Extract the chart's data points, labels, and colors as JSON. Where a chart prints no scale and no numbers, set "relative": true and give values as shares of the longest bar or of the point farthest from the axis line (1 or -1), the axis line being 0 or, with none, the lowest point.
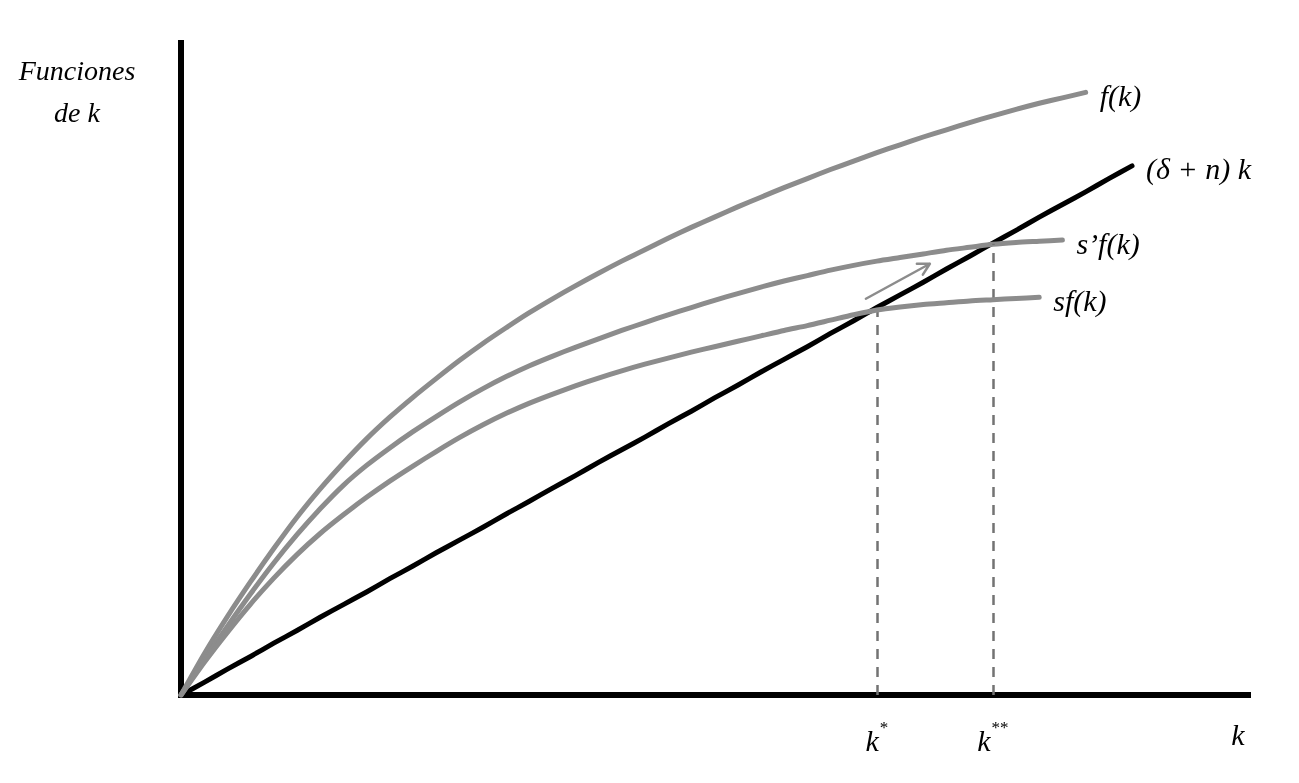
{
  "chart_data": {
    "type": "line",
    "relative": true,
    "xlabel": "k",
    "ylabel": "Funciones de k",
    "categories": [
      null,
      null,
      null,
      null,
      null,
      null,
      null,
      null,
      null,
      null,
      null,
      null,
      null,
      null,
      null,
      null,
      null,
      null,
      null,
      null,
      null,
      null,
      null,
      null,
      null,
      null,
      null,
      null,
      null,
      null,
      "k$^{*}$",
      null,
      null,
      null,
      null,
      "k$^{**}$",
      null,
      null,
      null,
      null,
      null,
      null,
      null,
      null,
      null,
      null,
      null
    ],
    "series": [
      {
        "name": "f(k)",
        "color": "#8c8c8c",
        "values": [
          0,
          0.068,
          0.13,
          0.188,
          0.243,
          0.295,
          0.342,
          0.385,
          0.425,
          0.461,
          0.494,
          0.525,
          0.555,
          0.583,
          0.609,
          0.634,
          0.657,
          0.679,
          0.7,
          0.72,
          0.739,
          0.758,
          0.776,
          0.793,
          0.81,
          0.826,
          0.842,
          0.857,
          0.872,
          0.886,
          0.9,
          0.913,
          0.926,
          0.938,
          0.95,
          0.961,
          0.972,
          0.982,
          0.991,
          1,
          null,
          null,
          null,
          null,
          null,
          null,
          null
        ]
      },
      {
        "name": "(δ + n) k",
        "color": "#000000",
        "values": [
          0,
          0.021,
          0.043,
          0.064,
          0.086,
          0.107,
          0.129,
          0.15,
          0.171,
          0.193,
          0.214,
          0.236,
          0.257,
          0.278,
          0.3,
          0.321,
          0.343,
          0.364,
          0.386,
          0.407,
          0.428,
          0.45,
          0.471,
          0.493,
          0.514,
          0.536,
          0.557,
          0.578,
          0.6,
          0.621,
          0.643,
          0.664,
          0.685,
          0.707,
          0.728,
          0.75,
          0.771,
          0.793,
          0.814,
          0.835,
          0.857,
          0.878,
          null,
          null,
          null,
          null,
          null
        ]
      },
      {
        "name": "s’f(k)",
        "color": "#8c8c8c",
        "values": [
          0,
          0.058,
          0.114,
          0.168,
          0.219,
          0.266,
          0.309,
          0.348,
          0.381,
          0.41,
          0.437,
          0.462,
          0.486,
          0.508,
          0.528,
          0.546,
          0.562,
          0.577,
          0.591,
          0.605,
          0.618,
          0.631,
          0.643,
          0.655,
          0.666,
          0.677,
          0.687,
          0.696,
          0.705,
          0.713,
          0.72,
          0.726,
          0.732,
          0.738,
          0.743,
          0.748,
          0.751,
          0.753,
          0.755,
          null,
          null,
          null,
          null,
          null,
          null,
          null,
          null
        ]
      },
      {
        "name": "sf(k)",
        "color": "#8c8c8c",
        "values": [
          0,
          0.054,
          0.104,
          0.151,
          0.194,
          0.233,
          0.268,
          0.299,
          0.328,
          0.355,
          0.38,
          0.404,
          0.427,
          0.448,
          0.467,
          0.484,
          0.499,
          0.513,
          0.526,
          0.538,
          0.549,
          0.559,
          0.569,
          0.578,
          0.587,
          0.596,
          0.605,
          0.613,
          0.622,
          0.631,
          0.639,
          0.644,
          0.648,
          0.651,
          0.654,
          0.656,
          0.658,
          0.66,
          null,
          null,
          null,
          null,
          null,
          null,
          null,
          null,
          null
        ]
      }
    ],
    "ref_lines": [
      {
        "axis": "x",
        "value": "k$^{*}$",
        "color": "#737373",
        "line_style": "dashed"
      },
      {
        "axis": "x",
        "value": "k$^{**}$",
        "color": "#737373",
        "line_style": "dashed"
      }
    ]
  }
}
